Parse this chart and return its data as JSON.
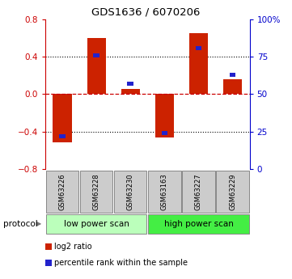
{
  "title": "GDS1636 / 6070206",
  "samples": [
    "GSM63226",
    "GSM63228",
    "GSM63230",
    "GSM63163",
    "GSM63227",
    "GSM63229"
  ],
  "log2_ratio": [
    -0.52,
    0.6,
    0.06,
    -0.46,
    0.65,
    0.16
  ],
  "percentile_rank": [
    22,
    76,
    57,
    24,
    81,
    63
  ],
  "left_ylim": [
    -0.8,
    0.8
  ],
  "right_ylim": [
    0,
    100
  ],
  "left_yticks": [
    -0.8,
    -0.4,
    0,
    0.4,
    0.8
  ],
  "right_yticks": [
    0,
    25,
    50,
    75,
    100
  ],
  "right_yticklabels": [
    "0",
    "25",
    "50",
    "75",
    "100%"
  ],
  "left_ytick_color": "#cc0000",
  "right_ytick_color": "#0000cc",
  "red_color": "#cc2200",
  "blue_color": "#2222cc",
  "hline_color": "#cc0000",
  "dotted_line_color": "#000000",
  "protocol_groups": [
    {
      "label": "low power scan",
      "color": "#bbffbb",
      "start": 0,
      "end": 2
    },
    {
      "label": "high power scan",
      "color": "#44ee44",
      "start": 3,
      "end": 5
    }
  ],
  "legend_items": [
    {
      "color": "#cc2200",
      "label": "log2 ratio"
    },
    {
      "color": "#2222cc",
      "label": "percentile rank within the sample"
    }
  ],
  "protocol_label": "protocol",
  "background_color": "#ffffff",
  "sample_box_color": "#cccccc"
}
